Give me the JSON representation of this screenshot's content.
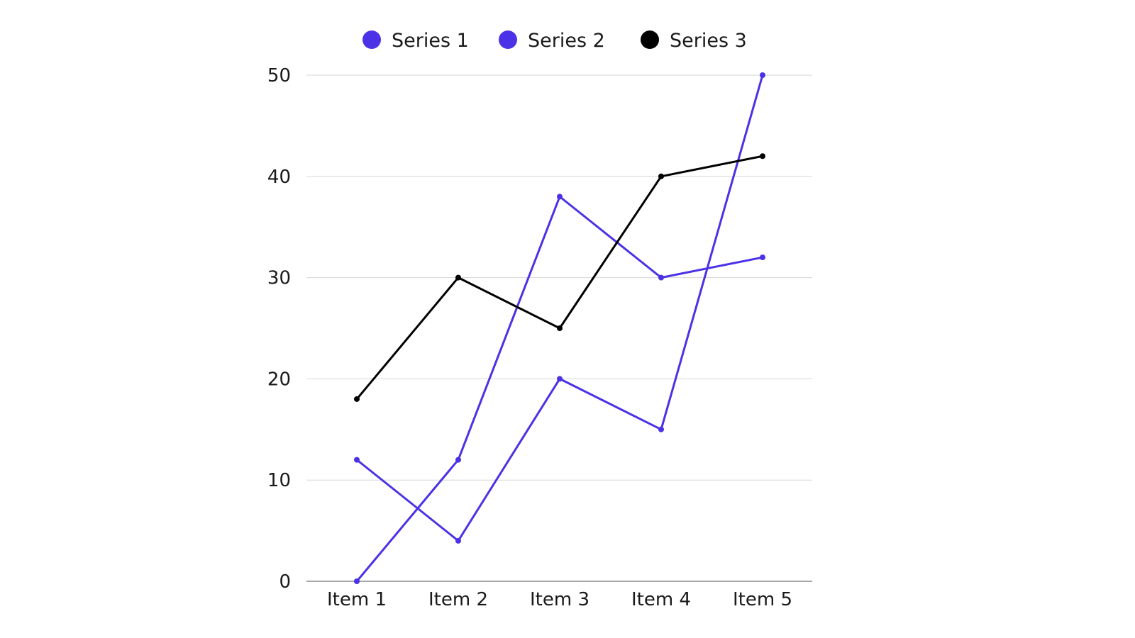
{
  "chart_data": {
    "type": "line",
    "categories": [
      "Item 1",
      "Item 2",
      "Item 3",
      "Item 4",
      "Item 5"
    ],
    "series": [
      {
        "name": "Series 1",
        "color": "#4b32e6",
        "values": [
          0,
          12,
          38,
          30,
          32
        ]
      },
      {
        "name": "Series 2",
        "color": "#4b32e6",
        "values": [
          12,
          4,
          20,
          15,
          50
        ]
      },
      {
        "name": "Series 3",
        "color": "#000000",
        "values": [
          18,
          30,
          25,
          40,
          42
        ]
      }
    ],
    "ylim": [
      0,
      50
    ],
    "yticks": [
      0,
      10,
      20,
      30,
      40,
      50
    ],
    "grid": true,
    "legend_position": "top"
  }
}
